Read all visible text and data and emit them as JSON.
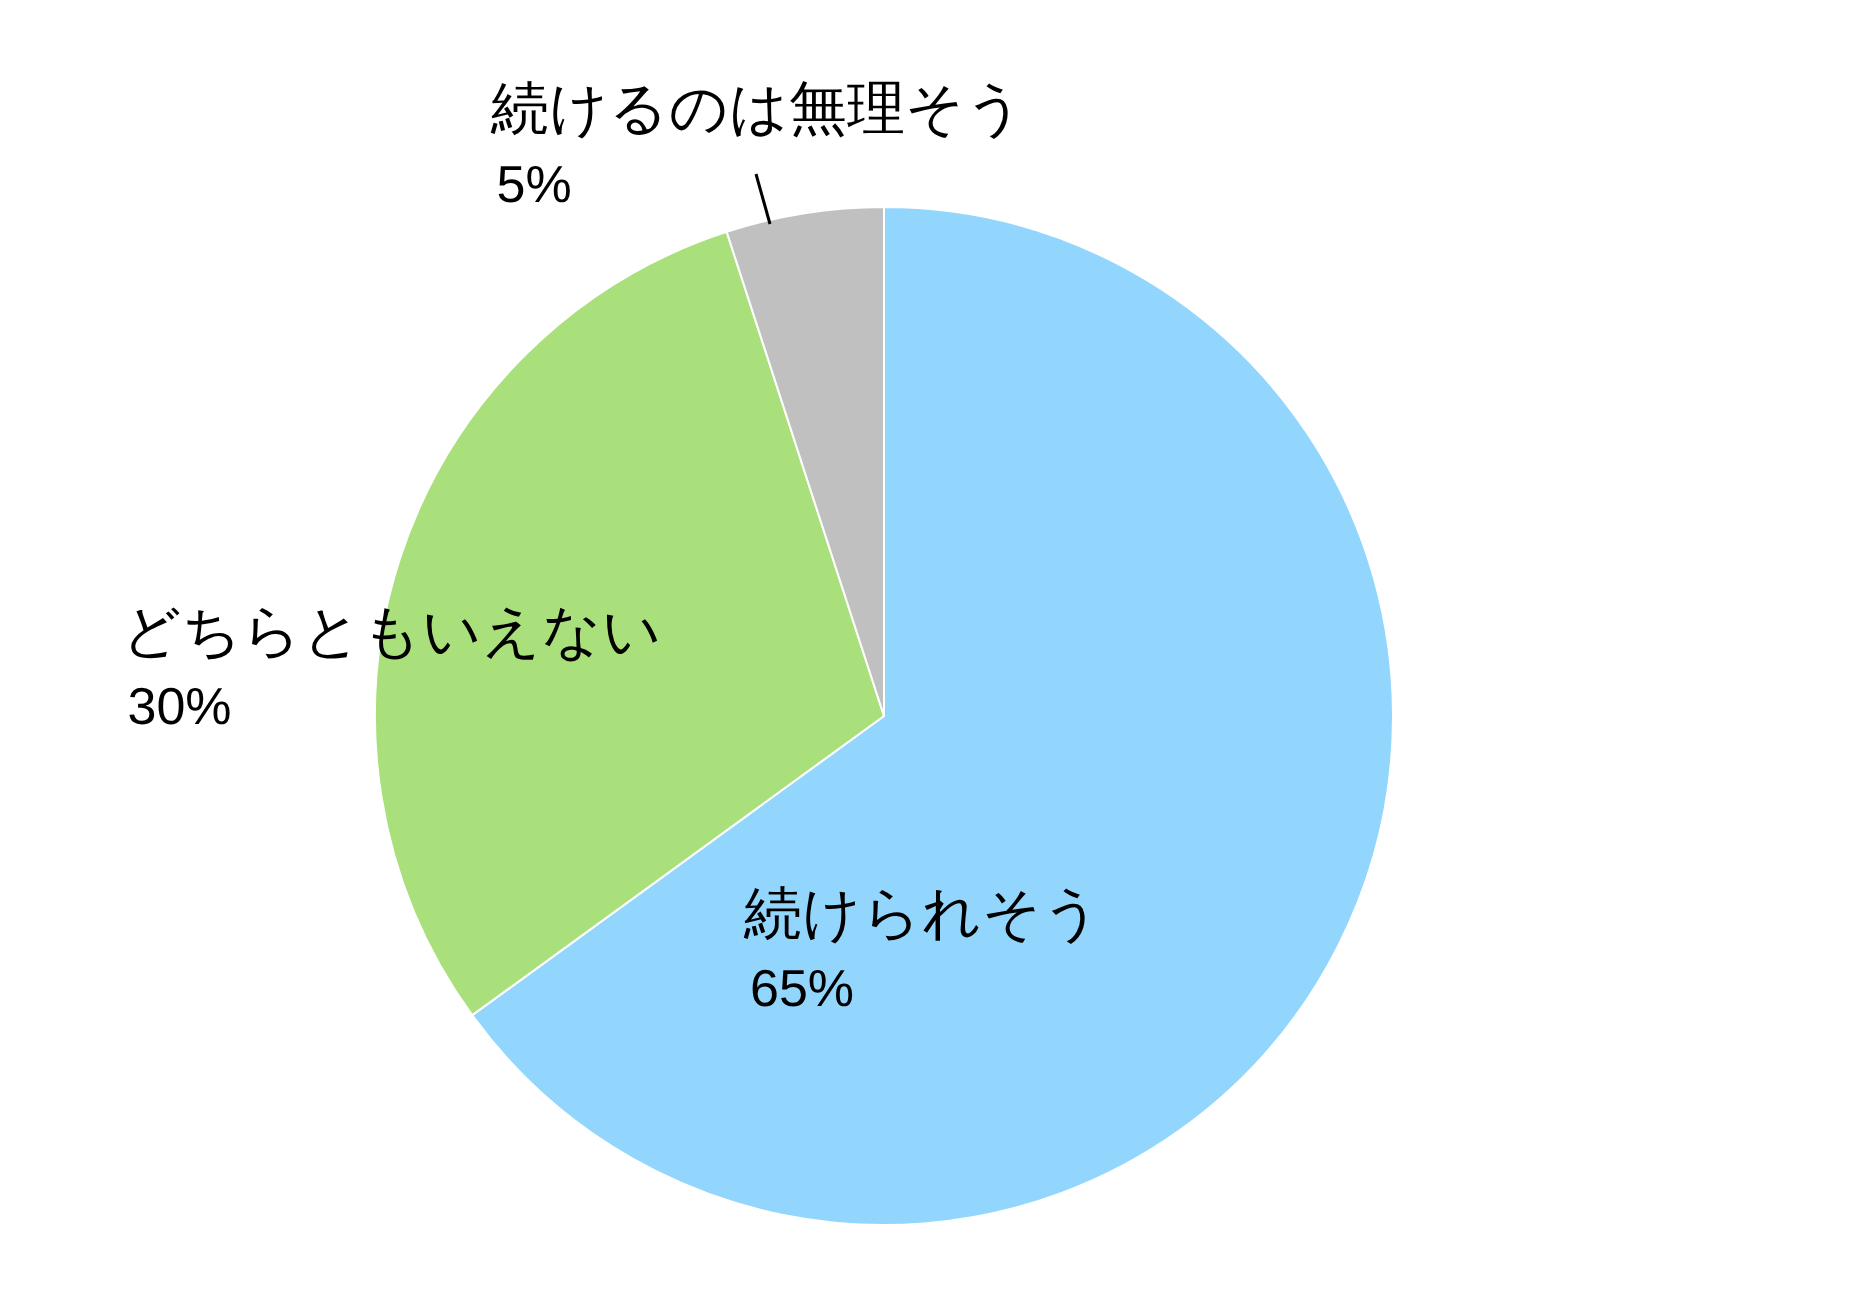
{
  "chart_data": {
    "type": "pie",
    "categories": [
      "続けられそう",
      "どちらともいえない",
      "続けるのは無理そう"
    ],
    "values": [
      65,
      30,
      5
    ],
    "colors": [
      "#93d6fd",
      "#a9e07b",
      "#c0c0c0"
    ],
    "value_labels": [
      "65%",
      "30%",
      "5%"
    ],
    "legend": false
  }
}
